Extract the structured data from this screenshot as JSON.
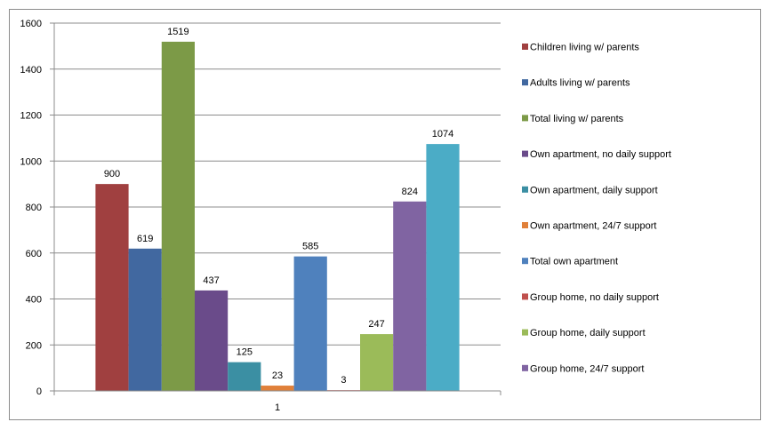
{
  "chart_data": {
    "type": "bar",
    "categories": [
      "1"
    ],
    "ylim": [
      0,
      1600
    ],
    "yticks": [
      0,
      200,
      400,
      600,
      800,
      1000,
      1200,
      1400,
      1600
    ],
    "ytick_labels": [
      "0",
      "200",
      "400",
      "600",
      "800",
      "1000",
      "1200",
      "1400",
      "1600"
    ],
    "grid": true,
    "legend_position": "right",
    "series": [
      {
        "name": "Children living w/ parents",
        "values": [
          900
        ],
        "color": "#A04040"
      },
      {
        "name": "Adults living w/ parents",
        "values": [
          619
        ],
        "color": "#4168A0"
      },
      {
        "name": "Total living w/ parents",
        "values": [
          1519
        ],
        "color": "#7C9A47"
      },
      {
        "name": "Own apartment, no daily support",
        "values": [
          437
        ],
        "color": "#6A4B8A"
      },
      {
        "name": "Own apartment, daily support",
        "values": [
          125
        ],
        "color": "#3B8FA3"
      },
      {
        "name": "Own apartment, 24/7 support",
        "values": [
          23
        ],
        "color": "#E0803A"
      },
      {
        "name": "Total own apartment",
        "values": [
          585
        ],
        "color": "#4F81BD"
      },
      {
        "name": "Group home, no daily support",
        "values": [
          3
        ],
        "color": "#C0504D"
      },
      {
        "name": "Group home, daily support",
        "values": [
          247
        ],
        "color": "#9BBB59"
      },
      {
        "name": "Group home, 24/7 support",
        "values": [
          824
        ],
        "color": "#8064A2"
      },
      {
        "name": "",
        "values": [
          1074
        ],
        "color": "#4BACC6"
      }
    ]
  }
}
